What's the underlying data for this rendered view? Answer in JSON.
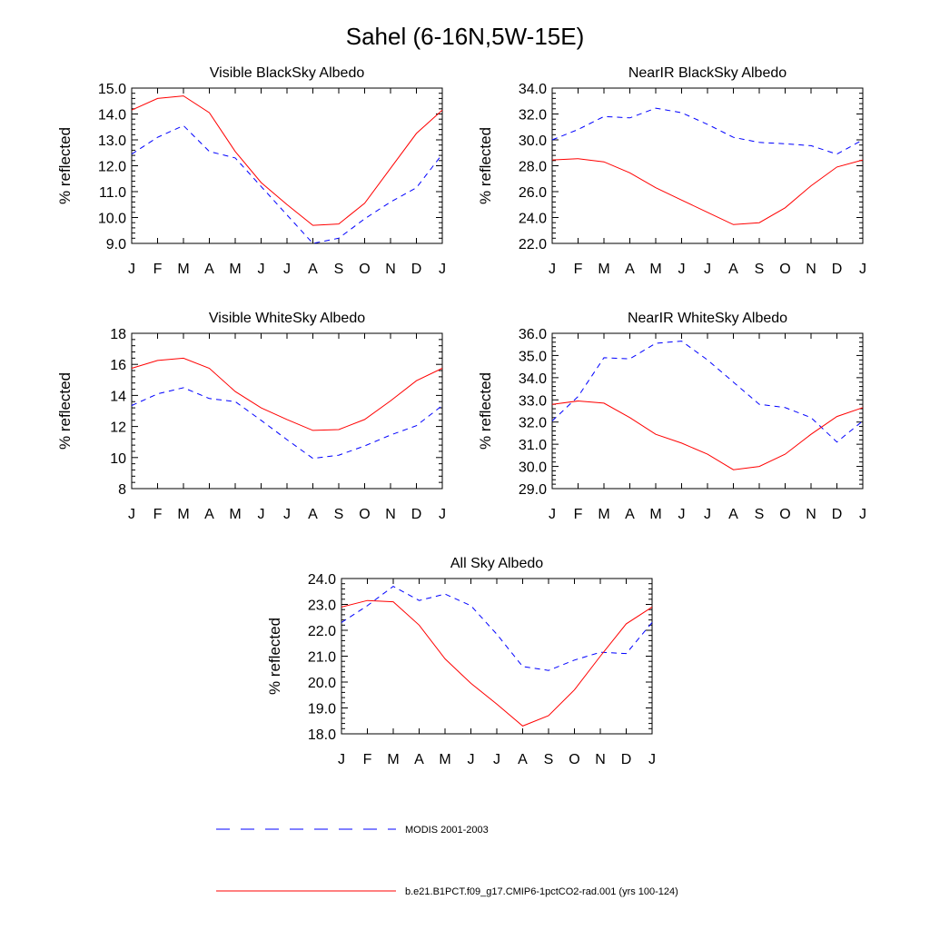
{
  "figure": {
    "title": "Sahel (6-16N,5W-15E)"
  },
  "style": {
    "modis_color": "#0000ff",
    "model_color": "#ff0000",
    "axis_color": "#000000"
  },
  "legend": {
    "modis_label": "MODIS 2001-2003",
    "model_label": "b.e21.B1PCT.f09_g17.CMIP6-1pctCO2-rad.001 (yrs 100-124)"
  },
  "chart_data": [
    {
      "type": "line",
      "title": "Visible BlackSky Albedo",
      "ylabel": "% reflected",
      "xlabel": "",
      "categories": [
        "J",
        "F",
        "M",
        "A",
        "M",
        "J",
        "J",
        "A",
        "S",
        "O",
        "N",
        "D",
        "J"
      ],
      "ylim": [
        9.0,
        15.0
      ],
      "yticks": [
        "9.0",
        "10.0",
        "11.0",
        "12.0",
        "13.0",
        "14.0",
        "15.0"
      ],
      "series": [
        {
          "name": "MODIS 2001-2003",
          "style": "dashed",
          "color": "#0000ff",
          "values": [
            12.45,
            13.1,
            13.55,
            12.55,
            12.3,
            11.2,
            10.1,
            9.0,
            9.2,
            9.95,
            10.6,
            11.15,
            12.45
          ]
        },
        {
          "name": "b.e21.B1PCT.f09_g17.CMIP6-1pctCO2-rad.001 (yrs 100-124)",
          "style": "solid",
          "color": "#ff0000",
          "values": [
            14.15,
            14.6,
            14.7,
            14.05,
            12.55,
            11.35,
            10.5,
            9.7,
            9.75,
            10.55,
            11.9,
            13.25,
            14.15
          ]
        }
      ]
    },
    {
      "type": "line",
      "title": "NearIR BlackSky Albedo",
      "ylabel": "% reflected",
      "xlabel": "",
      "categories": [
        "J",
        "F",
        "M",
        "A",
        "M",
        "J",
        "J",
        "A",
        "S",
        "O",
        "N",
        "D",
        "J"
      ],
      "ylim": [
        22.0,
        34.0
      ],
      "yticks": [
        "22.0",
        "24.0",
        "26.0",
        "28.0",
        "30.0",
        "32.0",
        "34.0"
      ],
      "series": [
        {
          "name": "MODIS 2001-2003",
          "style": "dashed",
          "color": "#0000ff",
          "values": [
            30.0,
            30.8,
            31.8,
            31.7,
            32.45,
            32.1,
            31.2,
            30.2,
            29.8,
            29.7,
            29.55,
            28.9,
            30.0
          ]
        },
        {
          "name": "b.e21.B1PCT.f09_g17.CMIP6-1pctCO2-rad.001 (yrs 100-124)",
          "style": "solid",
          "color": "#ff0000",
          "values": [
            28.45,
            28.55,
            28.3,
            27.45,
            26.3,
            25.35,
            24.4,
            23.45,
            23.6,
            24.75,
            26.45,
            27.9,
            28.45
          ]
        }
      ]
    },
    {
      "type": "line",
      "title": "Visible WhiteSky Albedo",
      "ylabel": "% reflected",
      "xlabel": "",
      "categories": [
        "J",
        "F",
        "M",
        "A",
        "M",
        "J",
        "J",
        "A",
        "S",
        "O",
        "N",
        "D",
        "J"
      ],
      "ylim": [
        8,
        18
      ],
      "yticks": [
        "8",
        "10",
        "12",
        "14",
        "16",
        "18"
      ],
      "series": [
        {
          "name": "MODIS 2001-2003",
          "style": "dashed",
          "color": "#0000ff",
          "values": [
            13.35,
            14.1,
            14.5,
            13.8,
            13.6,
            12.4,
            11.15,
            9.95,
            10.15,
            10.75,
            11.45,
            12.05,
            13.35
          ]
        },
        {
          "name": "b.e21.B1PCT.f09_g17.CMIP6-1pctCO2-rad.001 (yrs 100-124)",
          "style": "solid",
          "color": "#ff0000",
          "values": [
            15.75,
            16.25,
            16.4,
            15.75,
            14.25,
            13.2,
            12.45,
            11.75,
            11.8,
            12.45,
            13.65,
            14.95,
            15.75
          ]
        }
      ]
    },
    {
      "type": "line",
      "title": "NearIR WhiteSky Albedo",
      "ylabel": "% reflected",
      "xlabel": "",
      "categories": [
        "J",
        "F",
        "M",
        "A",
        "M",
        "J",
        "J",
        "A",
        "S",
        "O",
        "N",
        "D",
        "J"
      ],
      "ylim": [
        29.0,
        36.0
      ],
      "yticks": [
        "29.0",
        "30.0",
        "31.0",
        "32.0",
        "33.0",
        "34.0",
        "35.0",
        "36.0"
      ],
      "series": [
        {
          "name": "MODIS 2001-2003",
          "style": "dashed",
          "color": "#0000ff",
          "values": [
            32.05,
            33.15,
            34.9,
            34.85,
            35.55,
            35.65,
            34.8,
            33.8,
            32.8,
            32.65,
            32.2,
            31.1,
            32.05
          ]
        },
        {
          "name": "b.e21.B1PCT.f09_g17.CMIP6-1pctCO2-rad.001 (yrs 100-124)",
          "style": "solid",
          "color": "#ff0000",
          "values": [
            32.8,
            32.95,
            32.85,
            32.2,
            31.45,
            31.05,
            30.55,
            29.85,
            30.0,
            30.55,
            31.45,
            32.25,
            32.65
          ]
        }
      ]
    },
    {
      "type": "line",
      "title": "All Sky Albedo",
      "ylabel": "% reflected",
      "xlabel": "",
      "categories": [
        "J",
        "F",
        "M",
        "A",
        "M",
        "J",
        "J",
        "A",
        "S",
        "O",
        "N",
        "D",
        "J"
      ],
      "ylim": [
        18.0,
        24.0
      ],
      "yticks": [
        "18.0",
        "19.0",
        "20.0",
        "21.0",
        "22.0",
        "23.0",
        "24.0"
      ],
      "series": [
        {
          "name": "MODIS 2001-2003",
          "style": "dashed",
          "color": "#0000ff",
          "values": [
            22.3,
            22.95,
            23.7,
            23.15,
            23.4,
            22.95,
            21.85,
            20.6,
            20.45,
            20.85,
            21.15,
            21.1,
            22.3
          ]
        },
        {
          "name": "b.e21.B1PCT.f09_g17.CMIP6-1pctCO2-rad.001 (yrs 100-124)",
          "style": "solid",
          "color": "#ff0000",
          "values": [
            22.9,
            23.15,
            23.1,
            22.2,
            20.9,
            19.95,
            19.15,
            18.3,
            18.7,
            19.7,
            21.0,
            22.25,
            22.9
          ]
        }
      ]
    }
  ]
}
